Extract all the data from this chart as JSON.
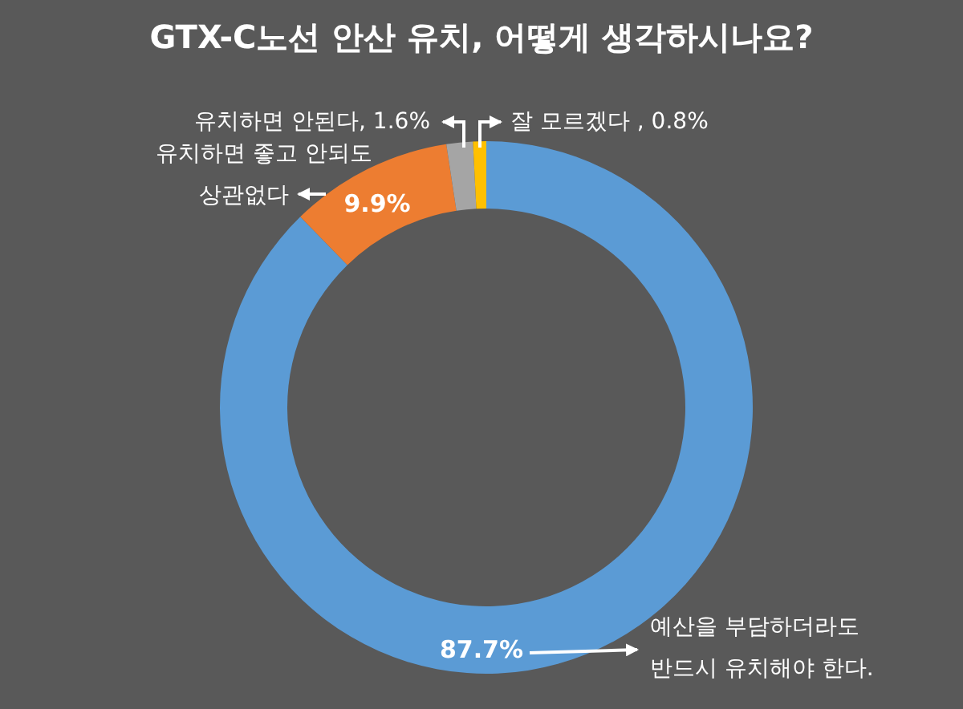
{
  "chart_data": {
    "type": "donut",
    "title": "GTX-C노선 안산 유치, 어떻게 생각하시나요?",
    "categories": [
      "예산을 부담하더라도\n반드시 유치해야 한다.",
      "유치하면 좋고 안되도\n상관없다",
      "유치하면 안된다",
      "잘 모르겠다 "
    ],
    "values": [
      87.7,
      9.9,
      1.6,
      0.8
    ],
    "colors": [
      "#5b9bd5",
      "#ed7d31",
      "#a5a5a5",
      "#ffc000"
    ],
    "value_labels": [
      "87.7%",
      "9.9%",
      "1.6%",
      "0.8%"
    ],
    "legend": false
  }
}
